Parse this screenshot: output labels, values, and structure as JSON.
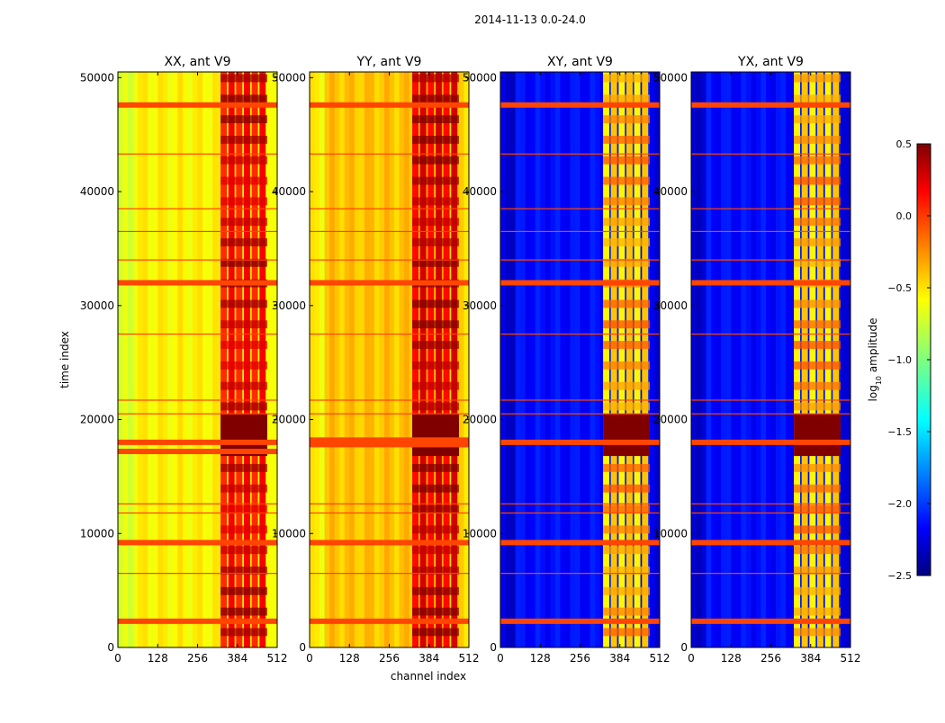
{
  "figure": {
    "suptitle": "2014-11-13 0.0-24.0",
    "xlabel": "channel index",
    "ylabel": "time index"
  },
  "colorbar": {
    "label_main": "log",
    "label_sub": "10",
    "label_rest": " amplitude",
    "ticks": [
      0.5,
      0.0,
      -0.5,
      -1.0,
      -1.5,
      -2.0,
      -2.5
    ],
    "tick_labels": [
      "0.5",
      "0.0",
      "−0.5",
      "−1.0",
      "−1.5",
      "−2.0",
      "−2.5"
    ],
    "range": [
      -2.5,
      0.5
    ],
    "colormap": "jet"
  },
  "chart_data": [
    {
      "type": "heatmap",
      "title": "XX, ant V9",
      "xlabel": "",
      "ylabel": "time index",
      "xlim": [
        0,
        512
      ],
      "ylim": [
        0,
        50500
      ],
      "xticks": [
        0,
        128,
        256,
        384,
        512
      ],
      "yticks": [
        0,
        10000,
        20000,
        30000,
        40000,
        50000
      ],
      "background_level": -0.6,
      "rfi_channel_range": [
        330,
        480
      ],
      "rfi_level": 0.0,
      "flagged_time_rows": [
        2300,
        9200,
        17200,
        18000,
        32000,
        47600
      ],
      "thin_flag_rows": [
        6500,
        11800,
        12600,
        20500,
        21700,
        27500,
        34000,
        36500,
        38500,
        43300
      ]
    },
    {
      "type": "heatmap",
      "title": "YY, ant V9",
      "xlabel": "channel index",
      "ylabel": "",
      "xlim": [
        0,
        512
      ],
      "ylim": [
        0,
        50500
      ],
      "xticks": [
        0,
        128,
        256,
        384,
        512
      ],
      "yticks": [
        0,
        10000,
        20000,
        30000,
        40000,
        50000
      ],
      "background_level": -0.45,
      "rfi_channel_range": [
        330,
        480
      ],
      "rfi_level": 0.1,
      "flagged_time_rows": [
        2300,
        9200,
        17800,
        18200,
        32000,
        47600
      ],
      "thin_flag_rows": [
        6500,
        11800,
        12600,
        20500,
        21700,
        27500,
        34000,
        36500,
        38500,
        43300
      ]
    },
    {
      "type": "heatmap",
      "title": "XY, ant V9",
      "xlabel": "",
      "ylabel": "",
      "xlim": [
        0,
        512
      ],
      "ylim": [
        0,
        50500
      ],
      "xticks": [
        0,
        128,
        256,
        384,
        512
      ],
      "yticks": [
        0,
        10000,
        20000,
        30000,
        40000,
        50000
      ],
      "background_level": -2.1,
      "rfi_channel_range": [
        330,
        480
      ],
      "rfi_level": -0.6,
      "flagged_time_rows": [
        2300,
        9200,
        18000,
        32000,
        47600
      ],
      "thin_flag_rows": [
        6500,
        11800,
        12600,
        20500,
        21700,
        27500,
        34000,
        36500,
        38500,
        43300
      ]
    },
    {
      "type": "heatmap",
      "title": "YX, ant V9",
      "xlabel": "",
      "ylabel": "",
      "xlim": [
        0,
        512
      ],
      "ylim": [
        0,
        50500
      ],
      "xticks": [
        0,
        128,
        256,
        384,
        512
      ],
      "yticks": [
        0,
        10000,
        20000,
        30000,
        40000,
        50000
      ],
      "background_level": -2.1,
      "rfi_channel_range": [
        330,
        480
      ],
      "rfi_level": -0.6,
      "flagged_time_rows": [
        2300,
        9200,
        18000,
        32000,
        47600
      ],
      "thin_flag_rows": [
        6500,
        11800,
        12600,
        20500,
        21700,
        27500,
        34000,
        36500,
        38500,
        43300
      ]
    }
  ]
}
